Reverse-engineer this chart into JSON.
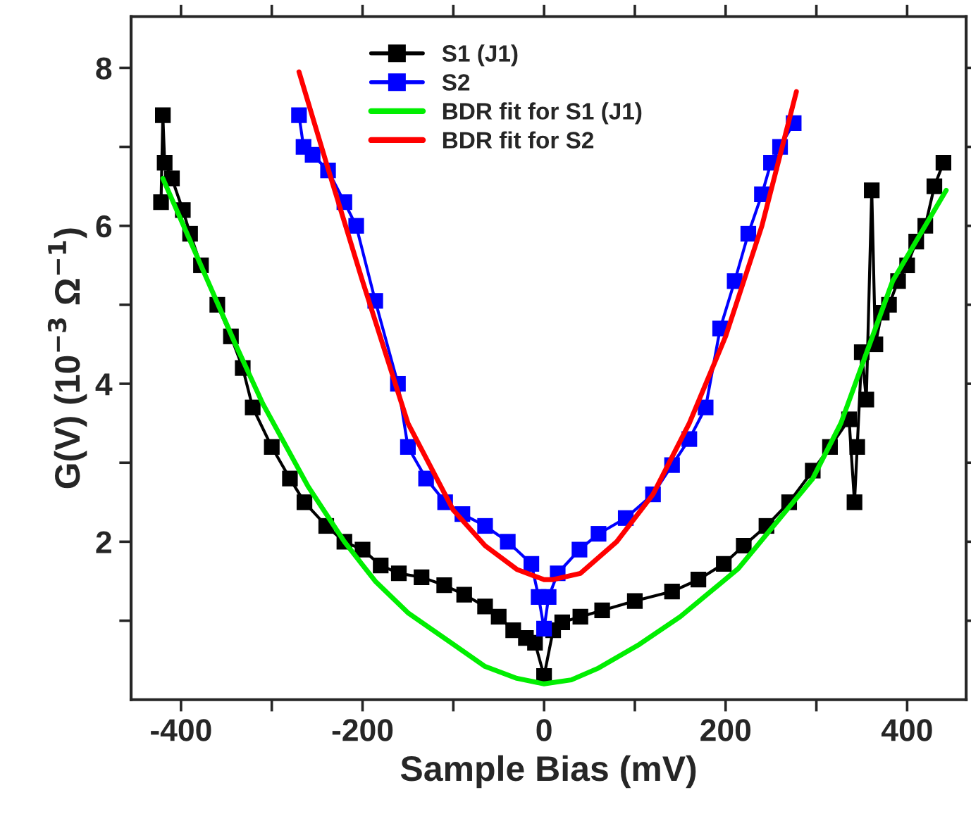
{
  "chart_data": {
    "type": "line",
    "xlabel": "Sample Bias (mV)",
    "ylabel": "G(V) (10$^{−3}$ Ω$^{−1}$)",
    "xlim": [
      -455,
      465
    ],
    "ylim": [
      0,
      8.65
    ],
    "xticks": [
      -400,
      {
        "value": -300,
        "label": null
      },
      -200,
      {
        "value": -100,
        "label": null
      },
      0,
      {
        "value": 100,
        "label": null
      },
      200,
      {
        "value": 300,
        "label": null
      },
      400
    ],
    "yticks": [
      {
        "value": 1,
        "label": null
      },
      2,
      {
        "value": 3,
        "label": null
      },
      4,
      {
        "value": 5,
        "label": null
      },
      6,
      {
        "value": 7,
        "label": null
      },
      8
    ],
    "grid": false,
    "legend": "top",
    "series": [
      {
        "name": "S1 (J1)",
        "color": "#000000",
        "marker": "square",
        "x": [
          -422,
          -420,
          -418,
          -410,
          -398,
          -390,
          -378,
          -360,
          -345,
          -332,
          -321,
          -300,
          -280,
          -264,
          -240,
          -220,
          -200,
          -180,
          -160,
          -135,
          -110,
          -88,
          -65,
          -50,
          -34,
          -20,
          -10,
          0,
          10,
          20,
          40,
          64,
          100,
          141,
          170,
          198,
          220,
          245,
          270,
          296,
          315,
          336,
          342,
          345,
          350,
          355,
          361,
          365,
          372,
          380,
          390,
          400,
          410,
          420,
          430,
          440
        ],
        "values": [
          6.3,
          7.4,
          6.8,
          6.6,
          6.2,
          5.9,
          5.5,
          5.0,
          4.6,
          4.2,
          3.7,
          3.2,
          2.8,
          2.5,
          2.2,
          2.0,
          1.9,
          1.7,
          1.6,
          1.55,
          1.45,
          1.33,
          1.18,
          1.05,
          0.88,
          0.78,
          0.72,
          0.3,
          0.88,
          0.98,
          1.05,
          1.13,
          1.25,
          1.37,
          1.52,
          1.72,
          1.95,
          2.2,
          2.5,
          2.9,
          3.2,
          3.55,
          2.5,
          3.2,
          4.4,
          3.8,
          6.45,
          4.5,
          4.9,
          5.0,
          5.3,
          5.5,
          5.8,
          6.0,
          6.5,
          6.8
        ]
      },
      {
        "name": "S2",
        "color": "#0000ff",
        "marker": "square",
        "x": [
          -270,
          -265,
          -255,
          -238,
          -220,
          -207,
          -186,
          -161,
          -150,
          -130,
          -109,
          -90,
          -65,
          -40,
          -14,
          -6,
          0,
          5,
          15,
          39,
          60,
          90,
          120,
          141,
          160,
          178,
          194,
          210,
          225,
          240,
          250,
          260,
          275
        ],
        "values": [
          7.4,
          7.0,
          6.9,
          6.7,
          6.3,
          6.0,
          5.05,
          4.0,
          3.2,
          2.8,
          2.5,
          2.35,
          2.2,
          2.0,
          1.72,
          1.3,
          0.9,
          1.3,
          1.6,
          1.9,
          2.1,
          2.3,
          2.6,
          2.97,
          3.3,
          3.7,
          4.7,
          5.3,
          5.9,
          6.4,
          6.8,
          7.0,
          7.3
        ]
      },
      {
        "name": "BDR fit for S1 (J1)",
        "color": "#00ee00",
        "marker": "none",
        "x": [
          -420,
          -380,
          -340,
          -310,
          -260,
          -220,
          -186,
          -150,
          -100,
          -65,
          -30,
          0,
          30,
          60,
          105,
          150,
          214,
          260,
          296,
          327,
          384,
          443
        ],
        "values": [
          6.6,
          5.55,
          4.5,
          3.75,
          2.7,
          2.0,
          1.5,
          1.1,
          0.7,
          0.42,
          0.27,
          0.2,
          0.25,
          0.4,
          0.7,
          1.05,
          1.66,
          2.3,
          2.8,
          3.5,
          5.3,
          6.45
        ]
      },
      {
        "name": "BDR fit for S2",
        "color": "#ff0000",
        "marker": "none",
        "x": [
          -270,
          -240,
          -200,
          -150,
          -100,
          -65,
          -30,
          0,
          10,
          40,
          80,
          120,
          160,
          200,
          240,
          278
        ],
        "values": [
          7.95,
          6.8,
          5.3,
          3.5,
          2.4,
          1.95,
          1.65,
          1.52,
          1.52,
          1.6,
          2.0,
          2.6,
          3.5,
          4.6,
          6.0,
          7.7
        ]
      }
    ]
  }
}
